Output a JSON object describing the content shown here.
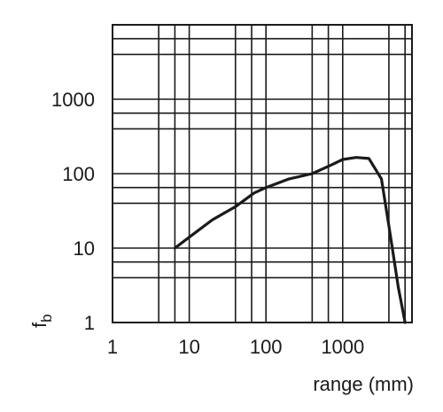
{
  "chart_data": {
    "type": "line",
    "xlabel": "range (mm)",
    "ylabel_main": "f",
    "ylabel_sub": "b",
    "x_scale": "log",
    "y_scale": "log",
    "xlim": [
      1,
      8000
    ],
    "ylim": [
      1,
      10000
    ],
    "grid": true,
    "x_ticks": [
      {
        "value": 1,
        "label": "1"
      },
      {
        "value": 10,
        "label": "10"
      },
      {
        "value": 100,
        "label": "100"
      },
      {
        "value": 1000,
        "label": "1000"
      }
    ],
    "y_ticks": [
      {
        "value": 1,
        "label": "1"
      },
      {
        "value": 10,
        "label": "10"
      },
      {
        "value": 100,
        "label": "100"
      },
      {
        "value": 1000,
        "label": "1000"
      }
    ],
    "x_gridlines": [
      4,
      6.5,
      40,
      65,
      400,
      650,
      4000,
      6500
    ],
    "y_gridlines": [
      4,
      6.5,
      40,
      65,
      400,
      650,
      4000,
      6500
    ],
    "series": [
      {
        "color": "#1a1a1a",
        "x": [
          6.5,
          10,
          20,
          40,
          70,
          100,
          200,
          400,
          700,
          1000,
          1500,
          2200,
          3200,
          4000,
          5300,
          6500
        ],
        "y": [
          10,
          14,
          24,
          36,
          55,
          65,
          85,
          100,
          130,
          155,
          165,
          160,
          85,
          20,
          3,
          1
        ]
      }
    ]
  }
}
